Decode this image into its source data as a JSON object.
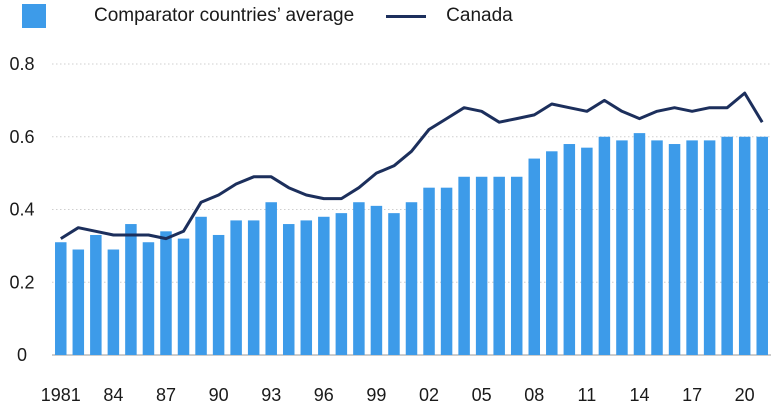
{
  "chart_data": {
    "type": "bar",
    "categories": [
      "1981",
      "1982",
      "1983",
      "1984",
      "1985",
      "1986",
      "1987",
      "1988",
      "1989",
      "1990",
      "1991",
      "1992",
      "1993",
      "1994",
      "1995",
      "1996",
      "1997",
      "1998",
      "1999",
      "2000",
      "2001",
      "2002",
      "2003",
      "2004",
      "2005",
      "2006",
      "2007",
      "2008",
      "2009",
      "2010",
      "2011",
      "2012",
      "2013",
      "2014",
      "2015",
      "2016",
      "2017",
      "2018",
      "2019",
      "2020",
      "2021"
    ],
    "x_tick_labels": [
      {
        "index": 0,
        "label": "1981"
      },
      {
        "index": 3,
        "label": "84"
      },
      {
        "index": 6,
        "label": "87"
      },
      {
        "index": 9,
        "label": "90"
      },
      {
        "index": 12,
        "label": "93"
      },
      {
        "index": 15,
        "label": "96"
      },
      {
        "index": 18,
        "label": "99"
      },
      {
        "index": 21,
        "label": "02"
      },
      {
        "index": 24,
        "label": "05"
      },
      {
        "index": 27,
        "label": "08"
      },
      {
        "index": 30,
        "label": "11"
      },
      {
        "index": 33,
        "label": "14"
      },
      {
        "index": 36,
        "label": "17"
      },
      {
        "index": 39,
        "label": "20"
      }
    ],
    "y_ticks": [
      {
        "value": 0,
        "label": "0"
      },
      {
        "value": 0.2,
        "label": "0.2"
      },
      {
        "value": 0.4,
        "label": "0.4"
      },
      {
        "value": 0.6,
        "label": "0.6"
      },
      {
        "value": 0.8,
        "label": "0.8"
      }
    ],
    "ylim": [
      0,
      0.8
    ],
    "grid": true,
    "legend_position": "top-left",
    "series": [
      {
        "name": "Comparator countries’ average",
        "kind": "bar",
        "color": "#3d9be9",
        "values": [
          0.31,
          0.29,
          0.33,
          0.29,
          0.36,
          0.31,
          0.34,
          0.32,
          0.38,
          0.33,
          0.37,
          0.37,
          0.42,
          0.36,
          0.37,
          0.38,
          0.39,
          0.42,
          0.41,
          0.39,
          0.42,
          0.46,
          0.46,
          0.49,
          0.49,
          0.49,
          0.49,
          0.54,
          0.56,
          0.58,
          0.57,
          0.6,
          0.59,
          0.61,
          0.59,
          0.58,
          0.59,
          0.59,
          0.6,
          0.6,
          0.6
        ]
      },
      {
        "name": "Canada",
        "kind": "line",
        "color": "#1c2f5c",
        "values": [
          0.32,
          0.35,
          0.34,
          0.33,
          0.33,
          0.33,
          0.32,
          0.34,
          0.42,
          0.44,
          0.47,
          0.49,
          0.49,
          0.46,
          0.44,
          0.43,
          0.43,
          0.46,
          0.5,
          0.52,
          0.56,
          0.62,
          0.65,
          0.68,
          0.67,
          0.64,
          0.65,
          0.66,
          0.69,
          0.68,
          0.67,
          0.7,
          0.67,
          0.65,
          0.67,
          0.68,
          0.67,
          0.68,
          0.68,
          0.72,
          0.64
        ]
      }
    ]
  }
}
